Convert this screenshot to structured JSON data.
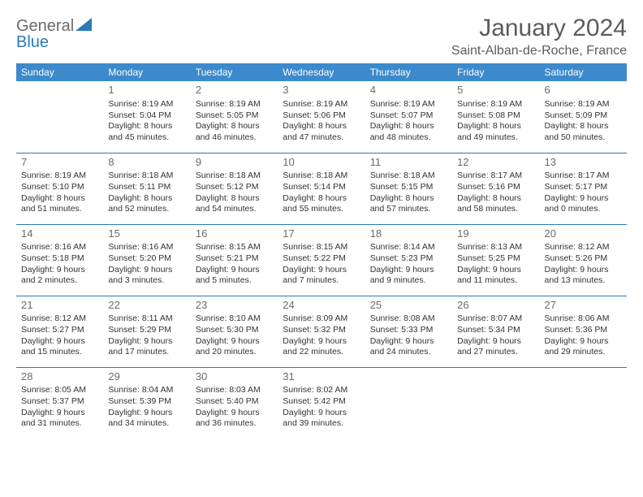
{
  "logo": {
    "text_left": "General",
    "text_right": "Blue"
  },
  "title": "January 2024",
  "location": "Saint-Alban-de-Roche, France",
  "colors": {
    "header_bg": "#3c8acb",
    "header_text": "#ffffff",
    "rule": "#2a7ab9",
    "title_text": "#5c5c5c",
    "daynum_text": "#6a6a6a",
    "body_text": "#333333",
    "logo_gray": "#6a6a6a",
    "logo_blue": "#2a7ab9"
  },
  "weekdays": [
    "Sunday",
    "Monday",
    "Tuesday",
    "Wednesday",
    "Thursday",
    "Friday",
    "Saturday"
  ],
  "weeks": [
    [
      null,
      {
        "n": "1",
        "sr": "8:19 AM",
        "ss": "5:04 PM",
        "dl": "8 hours and 45 minutes."
      },
      {
        "n": "2",
        "sr": "8:19 AM",
        "ss": "5:05 PM",
        "dl": "8 hours and 46 minutes."
      },
      {
        "n": "3",
        "sr": "8:19 AM",
        "ss": "5:06 PM",
        "dl": "8 hours and 47 minutes."
      },
      {
        "n": "4",
        "sr": "8:19 AM",
        "ss": "5:07 PM",
        "dl": "8 hours and 48 minutes."
      },
      {
        "n": "5",
        "sr": "8:19 AM",
        "ss": "5:08 PM",
        "dl": "8 hours and 49 minutes."
      },
      {
        "n": "6",
        "sr": "8:19 AM",
        "ss": "5:09 PM",
        "dl": "8 hours and 50 minutes."
      }
    ],
    [
      {
        "n": "7",
        "sr": "8:19 AM",
        "ss": "5:10 PM",
        "dl": "8 hours and 51 minutes."
      },
      {
        "n": "8",
        "sr": "8:18 AM",
        "ss": "5:11 PM",
        "dl": "8 hours and 52 minutes."
      },
      {
        "n": "9",
        "sr": "8:18 AM",
        "ss": "5:12 PM",
        "dl": "8 hours and 54 minutes."
      },
      {
        "n": "10",
        "sr": "8:18 AM",
        "ss": "5:14 PM",
        "dl": "8 hours and 55 minutes."
      },
      {
        "n": "11",
        "sr": "8:18 AM",
        "ss": "5:15 PM",
        "dl": "8 hours and 57 minutes."
      },
      {
        "n": "12",
        "sr": "8:17 AM",
        "ss": "5:16 PM",
        "dl": "8 hours and 58 minutes."
      },
      {
        "n": "13",
        "sr": "8:17 AM",
        "ss": "5:17 PM",
        "dl": "9 hours and 0 minutes."
      }
    ],
    [
      {
        "n": "14",
        "sr": "8:16 AM",
        "ss": "5:18 PM",
        "dl": "9 hours and 2 minutes."
      },
      {
        "n": "15",
        "sr": "8:16 AM",
        "ss": "5:20 PM",
        "dl": "9 hours and 3 minutes."
      },
      {
        "n": "16",
        "sr": "8:15 AM",
        "ss": "5:21 PM",
        "dl": "9 hours and 5 minutes."
      },
      {
        "n": "17",
        "sr": "8:15 AM",
        "ss": "5:22 PM",
        "dl": "9 hours and 7 minutes."
      },
      {
        "n": "18",
        "sr": "8:14 AM",
        "ss": "5:23 PM",
        "dl": "9 hours and 9 minutes."
      },
      {
        "n": "19",
        "sr": "8:13 AM",
        "ss": "5:25 PM",
        "dl": "9 hours and 11 minutes."
      },
      {
        "n": "20",
        "sr": "8:12 AM",
        "ss": "5:26 PM",
        "dl": "9 hours and 13 minutes."
      }
    ],
    [
      {
        "n": "21",
        "sr": "8:12 AM",
        "ss": "5:27 PM",
        "dl": "9 hours and 15 minutes."
      },
      {
        "n": "22",
        "sr": "8:11 AM",
        "ss": "5:29 PM",
        "dl": "9 hours and 17 minutes."
      },
      {
        "n": "23",
        "sr": "8:10 AM",
        "ss": "5:30 PM",
        "dl": "9 hours and 20 minutes."
      },
      {
        "n": "24",
        "sr": "8:09 AM",
        "ss": "5:32 PM",
        "dl": "9 hours and 22 minutes."
      },
      {
        "n": "25",
        "sr": "8:08 AM",
        "ss": "5:33 PM",
        "dl": "9 hours and 24 minutes."
      },
      {
        "n": "26",
        "sr": "8:07 AM",
        "ss": "5:34 PM",
        "dl": "9 hours and 27 minutes."
      },
      {
        "n": "27",
        "sr": "8:06 AM",
        "ss": "5:36 PM",
        "dl": "9 hours and 29 minutes."
      }
    ],
    [
      {
        "n": "28",
        "sr": "8:05 AM",
        "ss": "5:37 PM",
        "dl": "9 hours and 31 minutes."
      },
      {
        "n": "29",
        "sr": "8:04 AM",
        "ss": "5:39 PM",
        "dl": "9 hours and 34 minutes."
      },
      {
        "n": "30",
        "sr": "8:03 AM",
        "ss": "5:40 PM",
        "dl": "9 hours and 36 minutes."
      },
      {
        "n": "31",
        "sr": "8:02 AM",
        "ss": "5:42 PM",
        "dl": "9 hours and 39 minutes."
      },
      null,
      null,
      null
    ]
  ],
  "labels": {
    "sunrise": "Sunrise:",
    "sunset": "Sunset:",
    "daylight": "Daylight:"
  }
}
